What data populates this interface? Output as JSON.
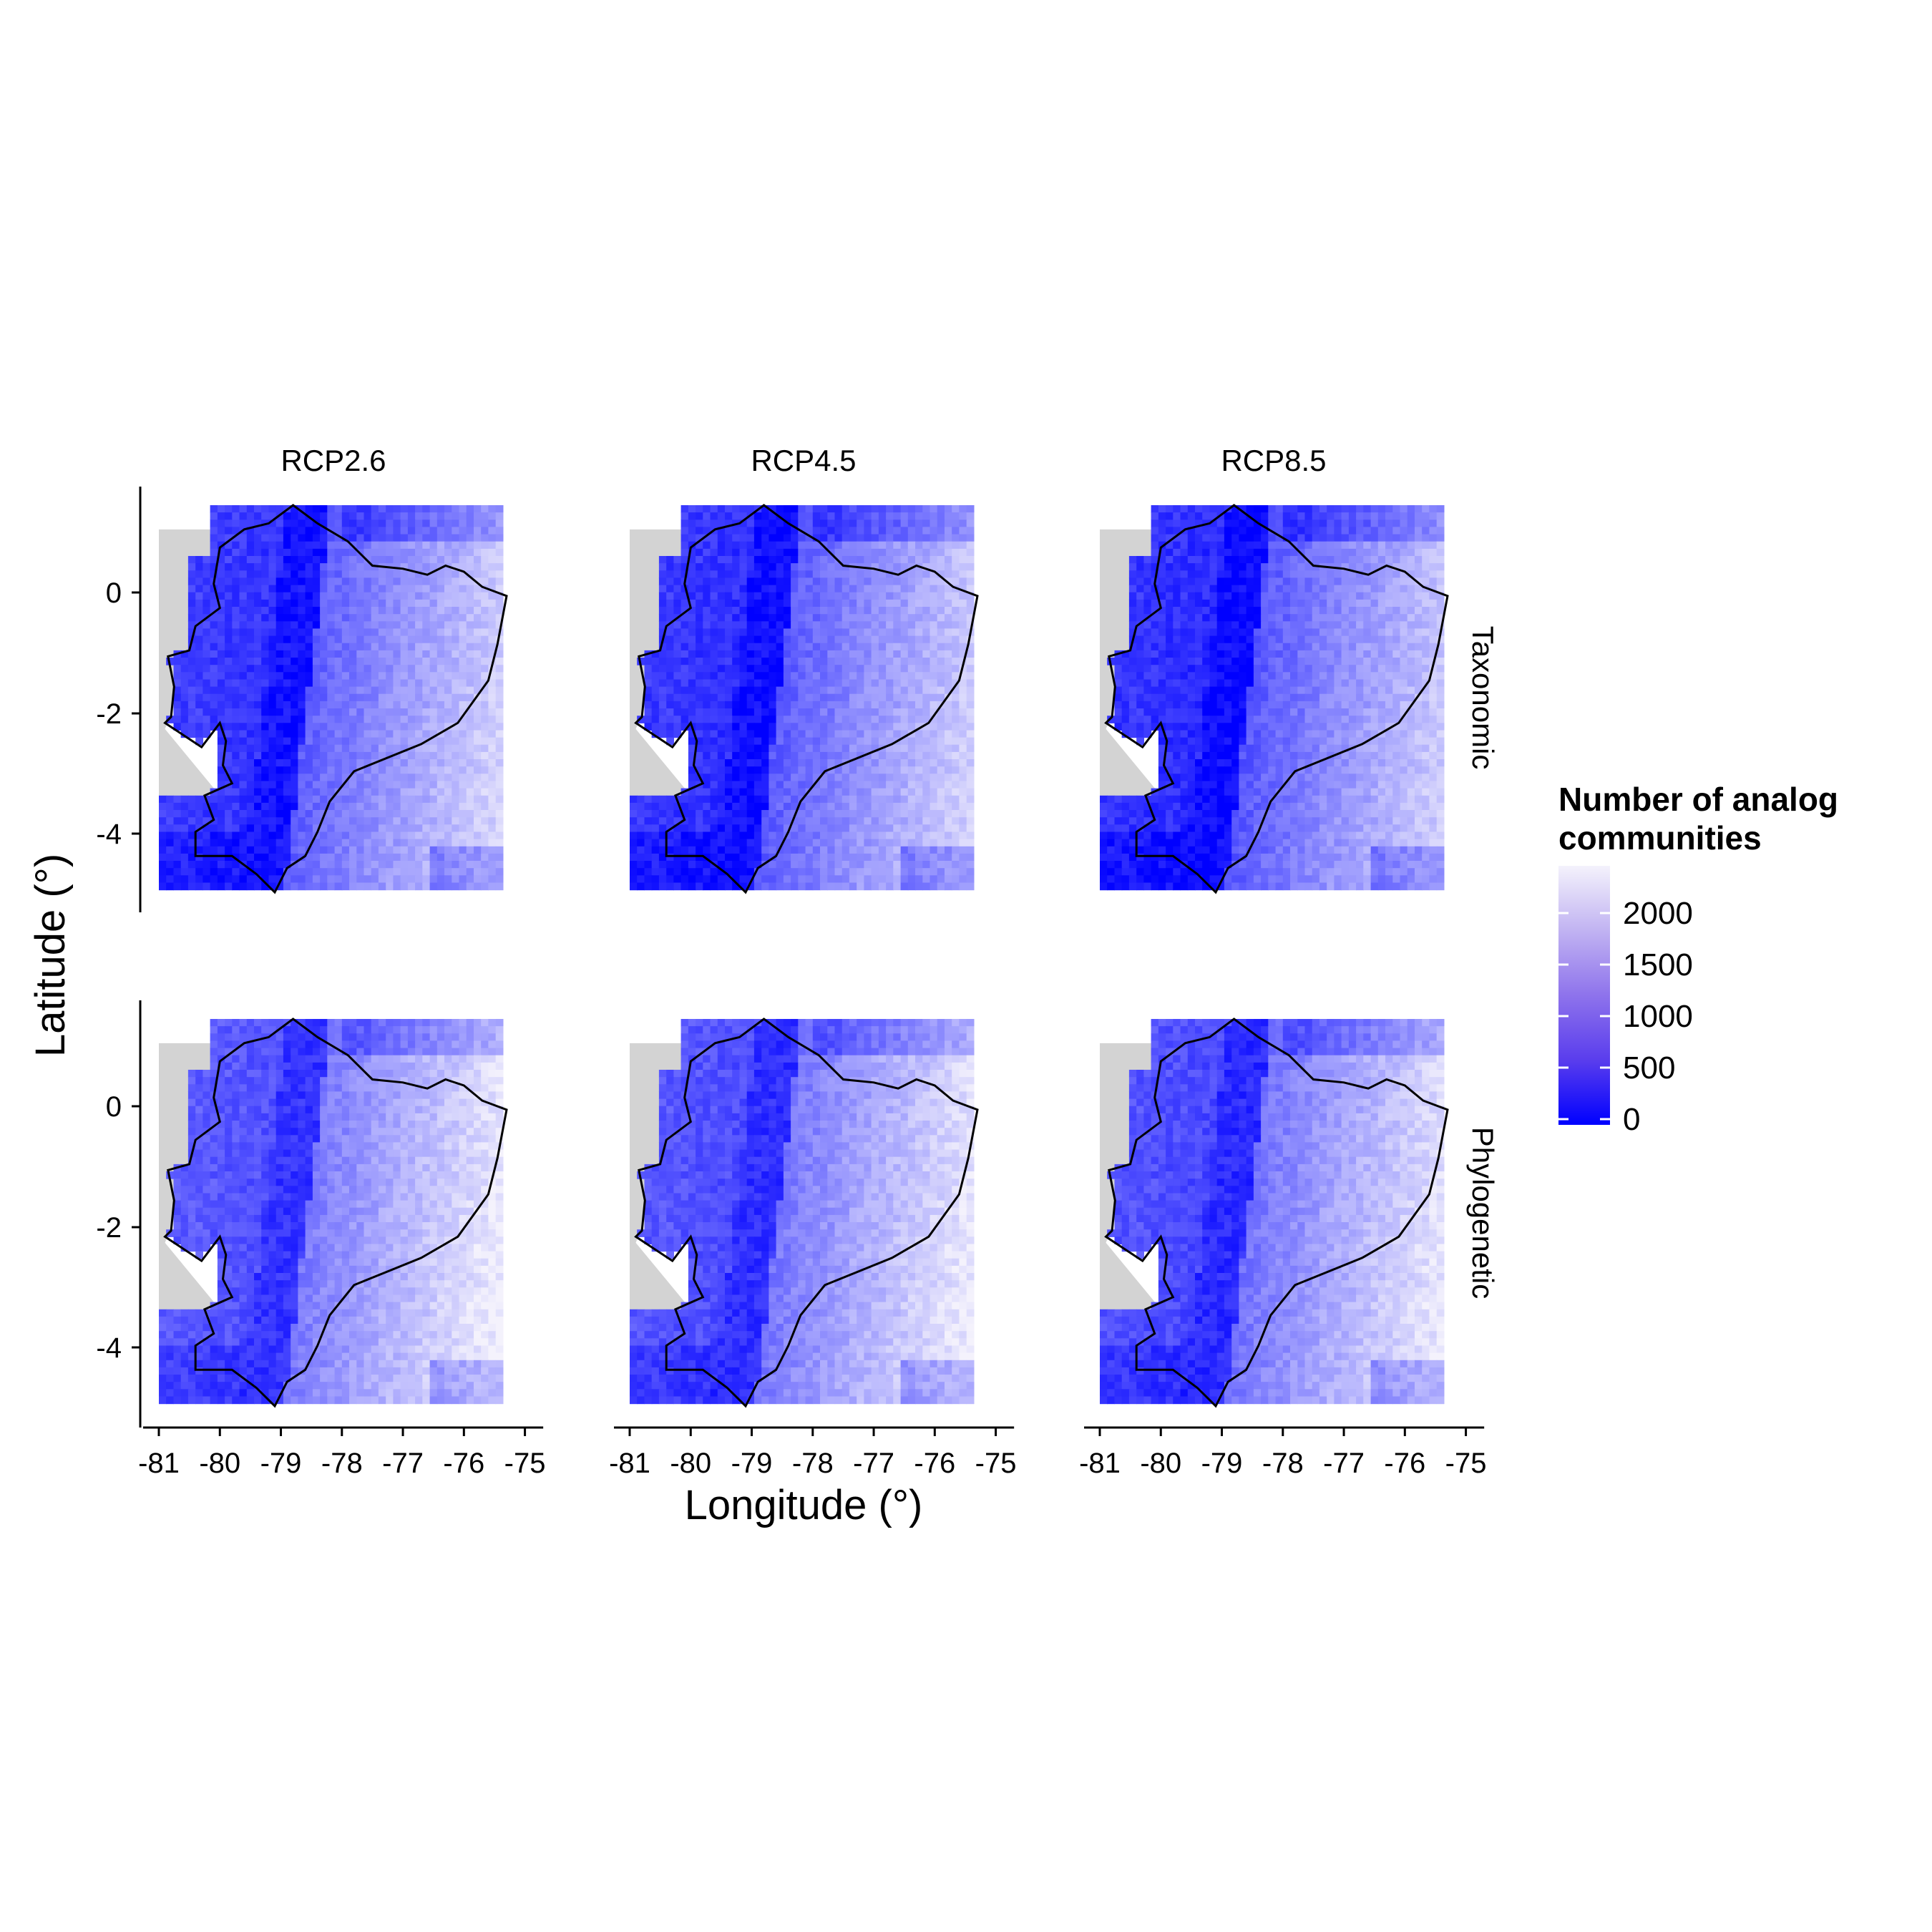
{
  "figure": {
    "xlabel": "Longitude (°)",
    "ylabel": "Latitude (°)",
    "columns": [
      "RCP2.6",
      "RCP4.5",
      "RCP8.5"
    ],
    "rows": [
      "Taxonomic",
      "Phylogenetic"
    ],
    "x_ticks": [
      "-81",
      "-80",
      "-79",
      "-78",
      "-77",
      "-76",
      "-75"
    ],
    "y_ticks": [
      "0",
      "-2",
      "-4"
    ]
  },
  "legend": {
    "title_line1": "Number of analog",
    "title_line2": "communities",
    "labels": [
      "2000",
      "1500",
      "1000",
      "500",
      "0"
    ],
    "color_low": "#0000ff",
    "color_high": "#f4f2fc"
  },
  "colors": {
    "ocean_no_data": "#d3d3d3",
    "border": "#000000"
  },
  "chart_data": {
    "type": "heatmap",
    "xlabel": "Longitude (°)",
    "ylabel": "Latitude (°)",
    "xlim": [
      -81,
      -75
    ],
    "ylim": [
      -5,
      1.4
    ],
    "value_range": [
      0,
      2400
    ],
    "panels": [
      {
        "column": "RCP2.6",
        "row": "Taxonomic"
      },
      {
        "column": "RCP4.5",
        "row": "Taxonomic"
      },
      {
        "column": "RCP8.5",
        "row": "Taxonomic"
      },
      {
        "column": "RCP2.6",
        "row": "Phylogenetic"
      },
      {
        "column": "RCP4.5",
        "row": "Phylogenetic"
      },
      {
        "column": "RCP8.5",
        "row": "Phylogenetic"
      }
    ]
  }
}
